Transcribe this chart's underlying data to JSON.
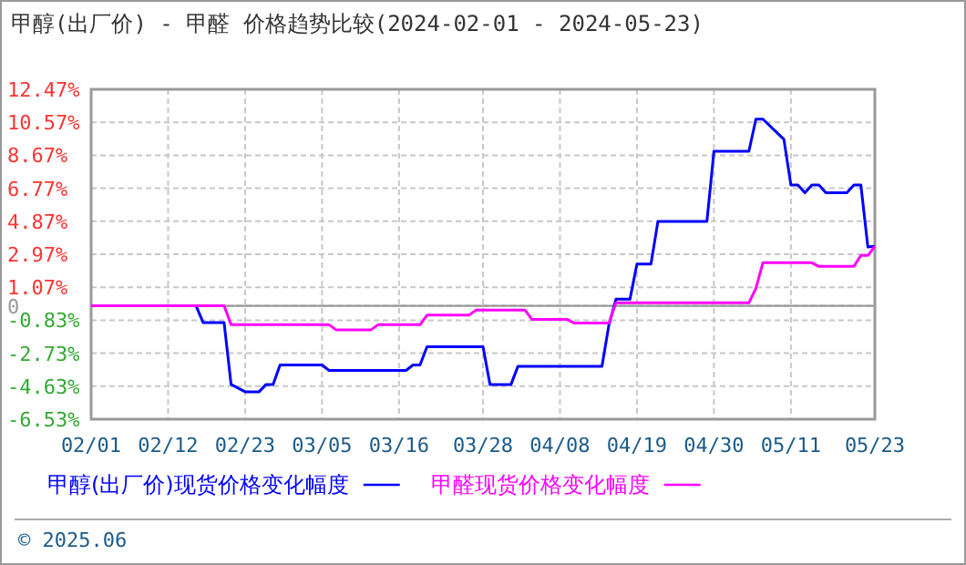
{
  "chart_data": {
    "type": "line",
    "title": "甲醇(出厂价) - 甲醛 价格趋势比较(2024-02-01 - 2024-05-23)",
    "annotations": [
      "© 2025.06"
    ],
    "xlim": [
      "2024-02-01",
      "2024-05-23"
    ],
    "xticks": [
      {
        "value": "2024-02-01",
        "label": "02/01"
      },
      {
        "value": "2024-02-12",
        "label": "02/12"
      },
      {
        "value": "2024-02-23",
        "label": "02/23"
      },
      {
        "value": "2024-03-05",
        "label": "03/05"
      },
      {
        "value": "2024-03-16",
        "label": "03/16"
      },
      {
        "value": "2024-03-28",
        "label": "03/28"
      },
      {
        "value": "2024-04-08",
        "label": "04/08"
      },
      {
        "value": "2024-04-19",
        "label": "04/19"
      },
      {
        "value": "2024-04-30",
        "label": "04/30"
      },
      {
        "value": "2024-05-11",
        "label": "05/11"
      },
      {
        "value": "2024-05-23",
        "label": "05/23"
      }
    ],
    "ylim": [
      -6.53,
      12.47
    ],
    "yticks": [
      {
        "value": -6.53,
        "label": "-6.53%"
      },
      {
        "value": -4.63,
        "label": "-4.63%"
      },
      {
        "value": -2.73,
        "label": "-2.73%"
      },
      {
        "value": -0.83,
        "label": "-0.83%"
      },
      0,
      {
        "value": 1.07,
        "label": "1.07%"
      },
      {
        "value": 2.97,
        "label": "2.97%"
      },
      {
        "value": 4.87,
        "label": "4.87%"
      },
      {
        "value": 6.77,
        "label": "6.77%"
      },
      {
        "value": 8.67,
        "label": "8.67%"
      },
      {
        "value": 10.57,
        "label": "10.57%"
      },
      {
        "value": 12.47,
        "label": "12.47%"
      }
    ],
    "grid": true,
    "legend": "bottom",
    "line_style": "solid",
    "marker": "none",
    "ref_lines": [
      {
        "axis": "y",
        "value": 0,
        "color": "#999999"
      }
    ],
    "series": [
      {
        "name": "甲醇(出厂价)现货价格变化幅度",
        "color": "#0000ff",
        "x": [
          "2024-02-01",
          "2024-02-16",
          "2024-02-17",
          "2024-02-20",
          "2024-02-21",
          "2024-02-23",
          "2024-02-25",
          "2024-02-26",
          "2024-02-27",
          "2024-02-28",
          "2024-03-05",
          "2024-03-06",
          "2024-03-17",
          "2024-03-18",
          "2024-03-19",
          "2024-03-20",
          "2024-03-28",
          "2024-03-29",
          "2024-04-01",
          "2024-04-02",
          "2024-04-14",
          "2024-04-15",
          "2024-04-16",
          "2024-04-18",
          "2024-04-19",
          "2024-04-21",
          "2024-04-22",
          "2024-04-29",
          "2024-04-30",
          "2024-05-05",
          "2024-05-06",
          "2024-05-07",
          "2024-05-10",
          "2024-05-11",
          "2024-05-12",
          "2024-05-13",
          "2024-05-14",
          "2024-05-15",
          "2024-05-16",
          "2024-05-19",
          "2024-05-20",
          "2024-05-21",
          "2024-05-22",
          "2024-05-23"
        ],
        "values": [
          0,
          0,
          -0.96,
          -0.96,
          -4.53,
          -4.95,
          -4.95,
          -4.53,
          -4.53,
          -3.41,
          -3.41,
          -3.72,
          -3.72,
          -3.41,
          -3.41,
          -2.36,
          -2.36,
          -4.53,
          -4.53,
          -3.48,
          -3.48,
          -1.09,
          0.38,
          0.38,
          2.41,
          2.41,
          4.86,
          4.86,
          8.9,
          8.9,
          10.75,
          10.75,
          9.59,
          6.96,
          6.96,
          6.51,
          6.96,
          6.96,
          6.51,
          6.51,
          6.96,
          6.96,
          3.39,
          3.43
        ]
      },
      {
        "name": "甲醛现货价格变化幅度",
        "color": "#ff00ff",
        "x": [
          "2024-02-01",
          "2024-02-20",
          "2024-02-21",
          "2024-03-06",
          "2024-03-07",
          "2024-03-12",
          "2024-03-13",
          "2024-03-19",
          "2024-03-20",
          "2024-03-26",
          "2024-03-27",
          "2024-04-03",
          "2024-04-04",
          "2024-04-09",
          "2024-04-10",
          "2024-04-15",
          "2024-04-16",
          "2024-05-05",
          "2024-05-06",
          "2024-05-07",
          "2024-05-14",
          "2024-05-15",
          "2024-05-20",
          "2024-05-21",
          "2024-05-22",
          "2024-05-23"
        ],
        "values": [
          0,
          0,
          -1.09,
          -1.09,
          -1.38,
          -1.38,
          -1.09,
          -1.09,
          -0.54,
          -0.54,
          -0.25,
          -0.25,
          -0.78,
          -0.78,
          -0.99,
          -0.99,
          0.17,
          0.17,
          1.01,
          2.48,
          2.48,
          2.27,
          2.27,
          2.9,
          2.9,
          3.43
        ]
      }
    ]
  }
}
